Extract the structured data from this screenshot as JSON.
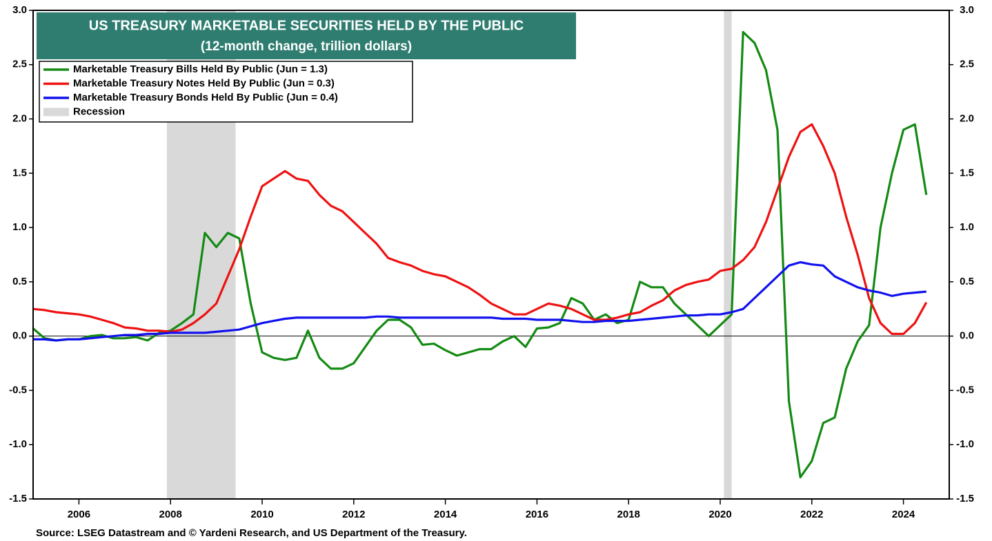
{
  "chart_data": {
    "type": "line",
    "title": "US TREASURY MARKETABLE SECURITIES HELD BY THE PUBLIC",
    "subtitle": "(12-month change, trillion dollars)",
    "source": "Source: LSEG Datastream and © Yardeni Research, and US Department of the Treasury.",
    "xlim": [
      2005,
      2025
    ],
    "xticks": [
      2006,
      2008,
      2010,
      2012,
      2014,
      2016,
      2018,
      2020,
      2022,
      2024
    ],
    "ylim": [
      -1.5,
      3.0
    ],
    "yticks": [
      {
        "value": -1.5,
        "label": "-1.5"
      },
      {
        "value": -1.0,
        "label": "-1.0"
      },
      {
        "value": -0.5,
        "label": "-0.5"
      },
      {
        "value": 0,
        "label": "0.0"
      },
      {
        "value": 0.5,
        "label": "0.5"
      },
      {
        "value": 1.0,
        "label": "1.0"
      },
      {
        "value": 1.5,
        "label": "1.5"
      },
      {
        "value": 2.0,
        "label": "2.0"
      },
      {
        "value": 2.5,
        "label": "2.5"
      },
      {
        "value": 3.0,
        "label": "3.0"
      }
    ],
    "y2lim": [
      -1.5,
      3.0
    ],
    "y2ticks": [
      {
        "value": -1.5,
        "label": "-1.5"
      },
      {
        "value": -1.0,
        "label": "-1.0"
      },
      {
        "value": -0.5,
        "label": "-0.5"
      },
      {
        "value": 0,
        "label": "0.0"
      },
      {
        "value": 0.5,
        "label": "0.5"
      },
      {
        "value": 1.0,
        "label": "1.0"
      },
      {
        "value": 1.5,
        "label": "1.5"
      },
      {
        "value": 2.0,
        "label": "2.0"
      },
      {
        "value": 2.5,
        "label": "2.5"
      },
      {
        "value": 3.0,
        "label": "3.0"
      }
    ],
    "recession_label": "Recession",
    "recession_color": "#d9d9d9",
    "recessions": [
      [
        2007.92,
        2009.42
      ],
      [
        2020.08,
        2020.25
      ]
    ],
    "x": [
      2005,
      2005.25,
      2005.5,
      2005.75,
      2006,
      2006.25,
      2006.5,
      2006.75,
      2007,
      2007.25,
      2007.5,
      2007.75,
      2008,
      2008.25,
      2008.5,
      2008.75,
      2009,
      2009.25,
      2009.5,
      2009.75,
      2010,
      2010.25,
      2010.5,
      2010.75,
      2011,
      2011.25,
      2011.5,
      2011.75,
      2012,
      2012.25,
      2012.5,
      2012.75,
      2013,
      2013.25,
      2013.5,
      2013.75,
      2014,
      2014.25,
      2014.5,
      2014.75,
      2015,
      2015.25,
      2015.5,
      2015.75,
      2016,
      2016.25,
      2016.5,
      2016.75,
      2017,
      2017.25,
      2017.5,
      2017.75,
      2018,
      2018.25,
      2018.5,
      2018.75,
      2019,
      2019.25,
      2019.5,
      2019.75,
      2020,
      2020.25,
      2020.5,
      2020.75,
      2021,
      2021.25,
      2021.5,
      2021.75,
      2022,
      2022.25,
      2022.5,
      2022.75,
      2023,
      2023.25,
      2023.5,
      2023.75,
      2024,
      2024.25,
      2024.5
    ],
    "series": [
      {
        "name": "Marketable Treasury Bills Held By Public (Jun = 1.3)",
        "color": "#138a13",
        "values": [
          0.07,
          -0.02,
          -0.04,
          -0.03,
          -0.03,
          0.0,
          0.01,
          -0.02,
          -0.02,
          -0.01,
          -0.04,
          0.03,
          0.05,
          0.12,
          0.2,
          0.95,
          0.82,
          0.95,
          0.9,
          0.3,
          -0.15,
          -0.2,
          -0.22,
          -0.2,
          0.05,
          -0.2,
          -0.3,
          -0.3,
          -0.25,
          -0.1,
          0.05,
          0.15,
          0.15,
          0.08,
          -0.08,
          -0.07,
          -0.13,
          -0.18,
          -0.15,
          -0.12,
          -0.12,
          -0.05,
          0.0,
          -0.1,
          0.07,
          0.08,
          0.12,
          0.35,
          0.3,
          0.15,
          0.2,
          0.12,
          0.15,
          0.5,
          0.45,
          0.45,
          0.3,
          0.2,
          0.1,
          0.0,
          0.1,
          0.2,
          2.8,
          2.7,
          2.45,
          1.9,
          -0.6,
          -1.3,
          -1.15,
          -0.8,
          -0.75,
          -0.3,
          -0.05,
          0.1,
          1.0,
          1.5,
          1.9,
          1.95,
          1.3
        ]
      },
      {
        "name": "Marketable Treasury Notes Held By Public (Jun = 0.3)",
        "color": "#ee1111",
        "values": [
          0.25,
          0.24,
          0.22,
          0.21,
          0.2,
          0.18,
          0.15,
          0.12,
          0.08,
          0.07,
          0.05,
          0.05,
          0.04,
          0.06,
          0.12,
          0.2,
          0.3,
          0.55,
          0.8,
          1.1,
          1.38,
          1.45,
          1.52,
          1.45,
          1.43,
          1.3,
          1.2,
          1.15,
          1.05,
          0.95,
          0.85,
          0.72,
          0.68,
          0.65,
          0.6,
          0.57,
          0.55,
          0.5,
          0.45,
          0.38,
          0.3,
          0.25,
          0.2,
          0.2,
          0.25,
          0.3,
          0.28,
          0.25,
          0.2,
          0.15,
          0.15,
          0.17,
          0.2,
          0.22,
          0.28,
          0.33,
          0.42,
          0.47,
          0.5,
          0.52,
          0.6,
          0.62,
          0.7,
          0.82,
          1.05,
          1.35,
          1.65,
          1.88,
          1.95,
          1.75,
          1.5,
          1.1,
          0.75,
          0.35,
          0.12,
          0.02,
          0.02,
          0.12,
          0.31
        ]
      },
      {
        "name": "Marketable Treasury Bonds Held By Public (Jun = 0.4)",
        "color": "#1111ee",
        "values": [
          -0.03,
          -0.03,
          -0.04,
          -0.03,
          -0.03,
          -0.02,
          -0.01,
          0.0,
          0.01,
          0.01,
          0.02,
          0.02,
          0.03,
          0.03,
          0.03,
          0.03,
          0.04,
          0.05,
          0.06,
          0.09,
          0.12,
          0.14,
          0.16,
          0.17,
          0.17,
          0.17,
          0.17,
          0.17,
          0.17,
          0.17,
          0.18,
          0.18,
          0.17,
          0.17,
          0.17,
          0.17,
          0.17,
          0.17,
          0.17,
          0.17,
          0.17,
          0.16,
          0.16,
          0.16,
          0.15,
          0.15,
          0.15,
          0.14,
          0.13,
          0.13,
          0.14,
          0.14,
          0.14,
          0.15,
          0.16,
          0.17,
          0.18,
          0.19,
          0.19,
          0.2,
          0.2,
          0.22,
          0.25,
          0.35,
          0.45,
          0.55,
          0.65,
          0.68,
          0.66,
          0.65,
          0.55,
          0.5,
          0.45,
          0.42,
          0.4,
          0.37,
          0.39,
          0.4,
          0.41
        ]
      }
    ]
  }
}
